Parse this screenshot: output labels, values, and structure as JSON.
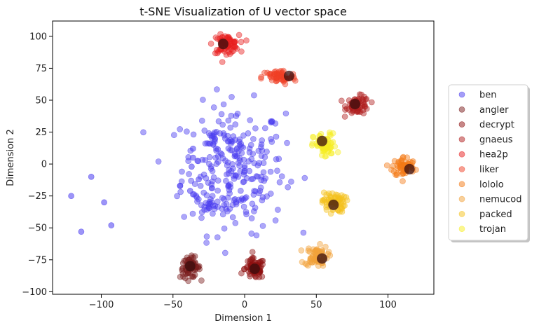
{
  "chart_data": {
    "type": "scatter",
    "title": "t-SNE Visualization of U vector space",
    "xlabel": "Dimension 1",
    "ylabel": "Dimension 2",
    "xlim": [
      -134,
      132
    ],
    "ylim": [
      -102,
      112
    ],
    "xticks": [
      -100,
      -50,
      0,
      50,
      100
    ],
    "yticks": [
      -100,
      -75,
      -50,
      -25,
      0,
      25,
      50,
      75,
      100
    ],
    "grid": false,
    "legend_position": "right",
    "series": [
      {
        "name": "ben",
        "color": "#4a3cf0",
        "clusters": [
          {
            "x": -8,
            "y": -4,
            "rx": 18,
            "ry": 25,
            "n": 260
          },
          {
            "x": -26,
            "y": -32,
            "rx": 4,
            "ry": 3,
            "n": 14
          },
          {
            "x": -21,
            "y": 23,
            "rx": 4,
            "ry": 2.5,
            "n": 10
          }
        ],
        "points": [
          {
            "x": -121,
            "y": -25
          },
          {
            "x": -107,
            "y": -10
          },
          {
            "x": -98,
            "y": -30
          },
          {
            "x": -114,
            "y": -53
          },
          {
            "x": -93,
            "y": -48
          },
          {
            "x": -45,
            "y": -17
          },
          {
            "x": -38,
            "y": -21
          },
          {
            "x": -37,
            "y": -2
          },
          {
            "x": -36,
            "y": 5
          },
          {
            "x": -36,
            "y": 12
          },
          {
            "x": -32,
            "y": -12
          },
          {
            "x": -6,
            "y": -30
          }
        ]
      },
      {
        "name": "angler",
        "color": "#7a1c1c",
        "centroid": {
          "x": -38,
          "y": -80
        },
        "clusters": [
          {
            "x": -38,
            "y": -81,
            "rx": 3.5,
            "ry": 4,
            "n": 70
          }
        ]
      },
      {
        "name": "decrypt",
        "color": "#8e1010",
        "centroid": {
          "x": 7,
          "y": -82
        },
        "clusters": [
          {
            "x": 7,
            "y": -82,
            "rx": 3.5,
            "ry": 4,
            "n": 70
          }
        ]
      },
      {
        "name": "gnaeus",
        "color": "#b01e1e",
        "centroid": {
          "x": 77,
          "y": 47
        },
        "clusters": [
          {
            "x": 79,
            "y": 46,
            "rx": 4,
            "ry": 3.5,
            "n": 70
          }
        ]
      },
      {
        "name": "hea2p",
        "color": "#e82020",
        "centroid": {
          "x": -15,
          "y": 94
        },
        "clusters": [
          {
            "x": -13,
            "y": 94,
            "rx": 4.5,
            "ry": 3.5,
            "n": 80
          }
        ]
      },
      {
        "name": "liker",
        "color": "#f04026",
        "centroid": {
          "x": 31,
          "y": 69
        },
        "clusters": [
          {
            "x": 24,
            "y": 68,
            "rx": 6,
            "ry": 3,
            "n": 60
          }
        ]
      },
      {
        "name": "lololo",
        "color": "#f47a16",
        "centroid": {
          "x": 115,
          "y": -4
        },
        "clusters": [
          {
            "x": 111,
            "y": -2,
            "rx": 4,
            "ry": 4,
            "n": 60
          }
        ]
      },
      {
        "name": "nemucod",
        "color": "#f2a23a",
        "centroid": {
          "x": 54,
          "y": -74
        },
        "clusters": [
          {
            "x": 50,
            "y": -72,
            "rx": 4,
            "ry": 4,
            "n": 70
          }
        ]
      },
      {
        "name": "packed",
        "color": "#f5c21c",
        "centroid": {
          "x": 62,
          "y": -32
        },
        "clusters": [
          {
            "x": 62,
            "y": -30,
            "rx": 4,
            "ry": 4,
            "n": 70
          }
        ]
      },
      {
        "name": "trojan",
        "color": "#f7ee22",
        "centroid": {
          "x": 54,
          "y": 18
        },
        "clusters": [
          {
            "x": 56,
            "y": 14,
            "rx": 4,
            "ry": 5,
            "n": 70
          }
        ]
      }
    ]
  }
}
